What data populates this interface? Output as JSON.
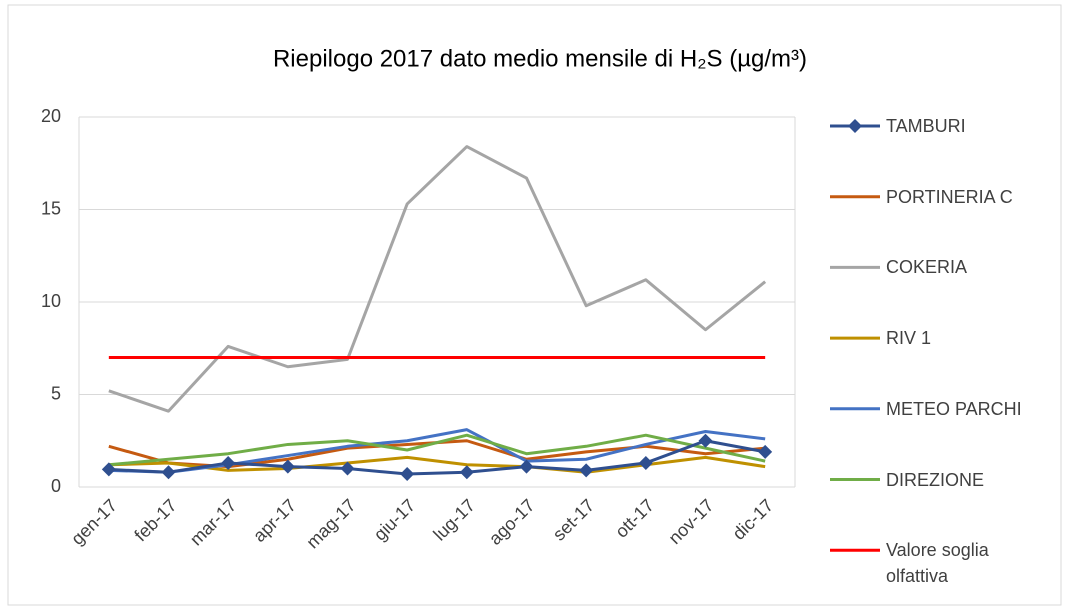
{
  "chart_data": {
    "type": "line",
    "title": "Riepilogo 2017 dato medio mensile di H₂S (µg/m³)",
    "categories": [
      "gen-17",
      "feb-17",
      "mar-17",
      "apr-17",
      "mag-17",
      "giu-17",
      "lug-17",
      "ago-17",
      "set-17",
      "ott-17",
      "nov-17",
      "dic-17"
    ],
    "series": [
      {
        "name": "TAMBURI",
        "color": "#2f4f8f",
        "marker": "diamond",
        "values": [
          0.95,
          0.8,
          1.3,
          1.1,
          1.0,
          0.7,
          0.8,
          1.1,
          0.9,
          1.3,
          2.5,
          1.9
        ]
      },
      {
        "name": "PORTINERIA C",
        "color": "#c55a11",
        "values": [
          2.2,
          1.3,
          1.1,
          1.5,
          2.1,
          2.3,
          2.5,
          1.5,
          1.9,
          2.2,
          1.8,
          2.1
        ]
      },
      {
        "name": "COKERIA",
        "color": "#a5a5a5",
        "values": [
          5.2,
          4.1,
          7.6,
          6.5,
          6.9,
          15.3,
          18.4,
          16.7,
          9.8,
          11.2,
          8.5,
          11.1
        ]
      },
      {
        "name": "RIV 1",
        "color": "#bf9000",
        "values": [
          1.2,
          1.3,
          0.9,
          1.0,
          1.3,
          1.6,
          1.2,
          1.1,
          0.8,
          1.2,
          1.6,
          1.1
        ]
      },
      {
        "name": "METEO PARCHI",
        "color": "#4472c4",
        "values": [
          0.9,
          0.8,
          1.2,
          1.7,
          2.2,
          2.5,
          3.1,
          1.4,
          1.5,
          2.3,
          3.0,
          2.6
        ]
      },
      {
        "name": "DIREZIONE",
        "color": "#70ad47",
        "values": [
          1.2,
          1.5,
          1.8,
          2.3,
          2.5,
          2.0,
          2.8,
          1.8,
          2.2,
          2.8,
          2.1,
          1.4
        ]
      },
      {
        "name": "Valore soglia olfattiva",
        "color": "#ff0000",
        "values": [
          7,
          7,
          7,
          7,
          7,
          7,
          7,
          7,
          7,
          7,
          7,
          7
        ]
      }
    ],
    "ylim": [
      0,
      20
    ],
    "yticks": [
      0,
      5,
      10,
      15,
      20
    ],
    "grid": true,
    "legend": "right"
  }
}
